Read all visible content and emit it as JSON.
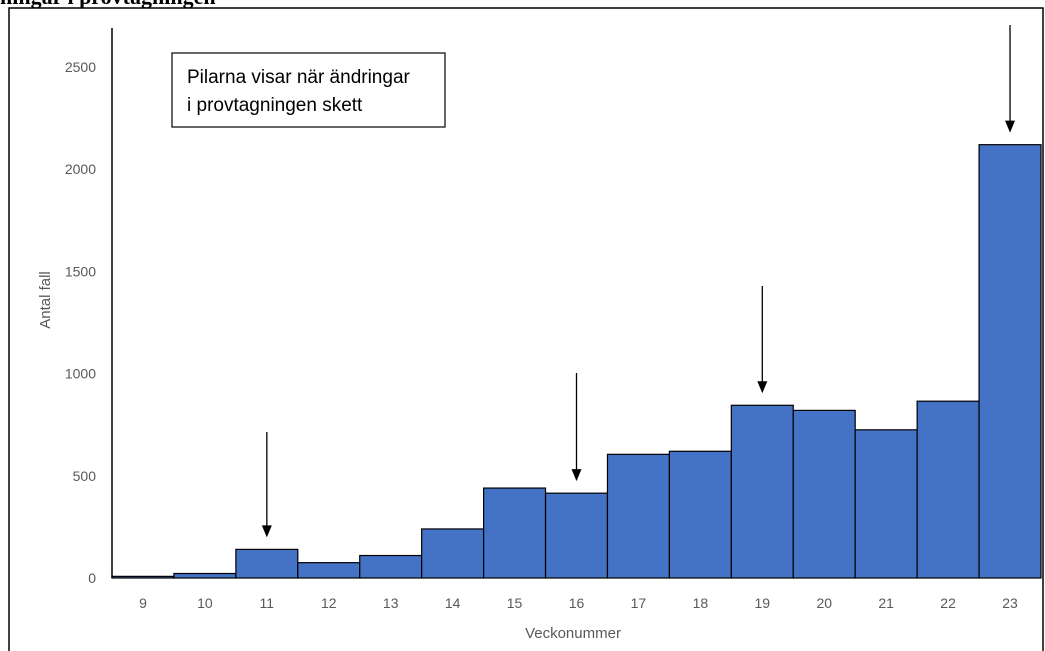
{
  "header": {
    "partial_title": "ningar i provtagningen"
  },
  "chart_data": {
    "type": "bar",
    "categories": [
      "9",
      "10",
      "11",
      "12",
      "13",
      "14",
      "15",
      "16",
      "17",
      "18",
      "19",
      "20",
      "21",
      "22",
      "23"
    ],
    "values": [
      8,
      22,
      140,
      75,
      110,
      240,
      440,
      415,
      605,
      620,
      845,
      820,
      725,
      865,
      2120
    ],
    "xlabel": "Veckonummer",
    "ylabel": "Antal fall",
    "ylim": [
      0,
      2500
    ],
    "yticks": [
      0,
      500,
      1000,
      1500,
      2000,
      2500
    ],
    "bar_color": "#4472C4",
    "grid": false,
    "annotation": {
      "lines": [
        "Pilarna visar när ändringar",
        "i provtagningen skett"
      ]
    },
    "arrow_weeks": [
      "11",
      "16",
      "19",
      "23"
    ]
  }
}
